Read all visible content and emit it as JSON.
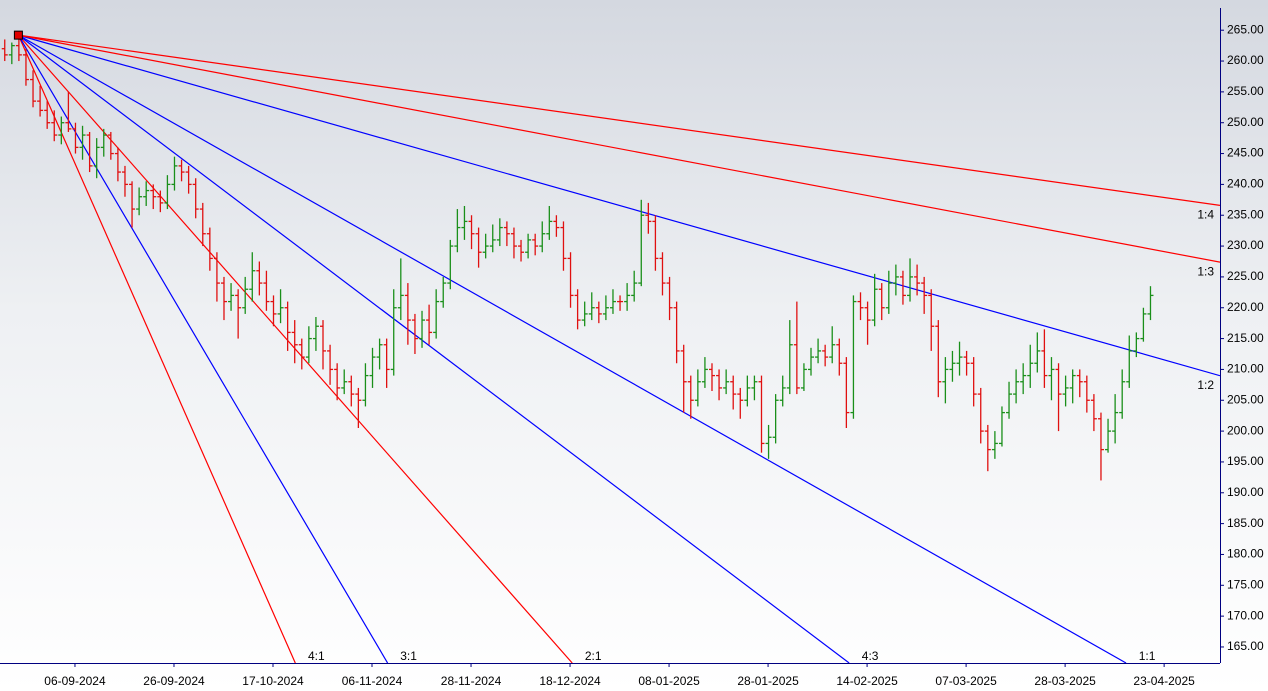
{
  "chart_data": {
    "type": "ohlc",
    "up_color": "#1a8f1a",
    "down_color": "#e01010",
    "xlim": [
      -0.6,
      171.9
    ],
    "ylim": [
      162.4,
      268.6
    ],
    "xticks": [
      {
        "value": 10,
        "label": "06-09-2024"
      },
      {
        "value": 24,
        "label": "26-09-2024"
      },
      {
        "value": 38,
        "label": "17-10-2024"
      },
      {
        "value": 52,
        "label": "06-11-2024"
      },
      {
        "value": 66,
        "label": "28-11-2024"
      },
      {
        "value": 80,
        "label": "18-12-2024"
      },
      {
        "value": 94,
        "label": "08-01-2025"
      },
      {
        "value": 108,
        "label": "28-01-2025"
      },
      {
        "value": 122,
        "label": "14-02-2025"
      },
      {
        "value": 136,
        "label": "07-03-2025"
      },
      {
        "value": 150,
        "label": "28-03-2025"
      },
      {
        "value": 164,
        "label": "23-04-2025"
      }
    ],
    "yticks": [
      {
        "value": 165,
        "label": "165.00"
      },
      {
        "value": 170,
        "label": "170.00"
      },
      {
        "value": 175,
        "label": "175.00"
      },
      {
        "value": 180,
        "label": "180.00"
      },
      {
        "value": 185,
        "label": "185.00"
      },
      {
        "value": 190,
        "label": "190.00"
      },
      {
        "value": 195,
        "label": "195.00"
      },
      {
        "value": 200,
        "label": "200.00"
      },
      {
        "value": 205,
        "label": "205.00"
      },
      {
        "value": 210,
        "label": "210.00"
      },
      {
        "value": 215,
        "label": "215.00"
      },
      {
        "value": 220,
        "label": "220.00"
      },
      {
        "value": 225,
        "label": "225.00"
      },
      {
        "value": 230,
        "label": "230.00"
      },
      {
        "value": 235,
        "label": "235.00"
      },
      {
        "value": 240,
        "label": "240.00"
      },
      {
        "value": 245,
        "label": "245.00"
      },
      {
        "value": 250,
        "label": "250.00"
      },
      {
        "value": 255,
        "label": "255.00"
      },
      {
        "value": 260,
        "label": "260.00"
      },
      {
        "value": 265,
        "label": "265.00"
      }
    ],
    "fan": {
      "origin_x": 2,
      "origin_y": 264.2,
      "unit": 0.65,
      "lines": [
        {
          "label": "4:1",
          "ratio": 4,
          "color": "#ff0000"
        },
        {
          "label": "3:1",
          "ratio": 3,
          "color": "#0000ff"
        },
        {
          "label": "2:1",
          "ratio": 2,
          "color": "#ff0000"
        },
        {
          "label": "4:3",
          "ratio": 1.3333,
          "color": "#0000ff"
        },
        {
          "label": "1:1",
          "ratio": 1,
          "color": "#0000ff"
        },
        {
          "label": "1:2",
          "ratio": 0.5,
          "color": "#0000ff"
        },
        {
          "label": "1:3",
          "ratio": 0.3333,
          "color": "#ff0000"
        },
        {
          "label": "1:4",
          "ratio": 0.25,
          "color": "#ff0000"
        }
      ]
    },
    "ohlc": [
      [
        262,
        263.5,
        260,
        261
      ],
      [
        261,
        263,
        259.5,
        262.5
      ],
      [
        262.5,
        264.5,
        260,
        261
      ],
      [
        261,
        262,
        256,
        257
      ],
      [
        257,
        258.5,
        252.5,
        253.5
      ],
      [
        253.5,
        256,
        251,
        252
      ],
      [
        252,
        253.5,
        249,
        250
      ],
      [
        250,
        252,
        247,
        248
      ],
      [
        248,
        251,
        246.5,
        250
      ],
      [
        250,
        255,
        248.5,
        249
      ],
      [
        249,
        250,
        245,
        246
      ],
      [
        246,
        249.5,
        244,
        248
      ],
      [
        248,
        248.5,
        242,
        243
      ],
      [
        243,
        247.5,
        241,
        246
      ],
      [
        246,
        249,
        244.5,
        248
      ],
      [
        248,
        248.5,
        244,
        245
      ],
      [
        245,
        246,
        240.5,
        242
      ],
      [
        242,
        243,
        238,
        240
      ],
      [
        240,
        240.5,
        233,
        236
      ],
      [
        236,
        239.5,
        235,
        238
      ],
      [
        238,
        240.5,
        236.5,
        239
      ],
      [
        239,
        240,
        236,
        238
      ],
      [
        238,
        239,
        235.5,
        237
      ],
      [
        237,
        241.5,
        236,
        240
      ],
      [
        240,
        244.5,
        239,
        243
      ],
      [
        243,
        244,
        240.5,
        242
      ],
      [
        242,
        243,
        238.5,
        240
      ],
      [
        240,
        241,
        234.5,
        236
      ],
      [
        236,
        237,
        230,
        232
      ],
      [
        232,
        233,
        226,
        228
      ],
      [
        228,
        229,
        221,
        224
      ],
      [
        224,
        225,
        218,
        221
      ],
      [
        221,
        224,
        219.5,
        222
      ],
      [
        222,
        223,
        215,
        220
      ],
      [
        220,
        225,
        219,
        223
      ],
      [
        223,
        229,
        221,
        226
      ],
      [
        226,
        227.5,
        222,
        224
      ],
      [
        224,
        226,
        219.5,
        221
      ],
      [
        221,
        222,
        217,
        219
      ],
      [
        219,
        223,
        217.5,
        220
      ],
      [
        220,
        221,
        213,
        216
      ],
      [
        216,
        218,
        211,
        214
      ],
      [
        214,
        215,
        210,
        212
      ],
      [
        212,
        217,
        211,
        215
      ],
      [
        215,
        218.5,
        213,
        217
      ],
      [
        217,
        218,
        210,
        213
      ],
      [
        213,
        214,
        207.5,
        210
      ],
      [
        210,
        211,
        205,
        207
      ],
      [
        207,
        210,
        206,
        208
      ],
      [
        208,
        209,
        204,
        206
      ],
      [
        206,
        207,
        200.5,
        205
      ],
      [
        205,
        211,
        204,
        209
      ],
      [
        209,
        213.5,
        207,
        212
      ],
      [
        212,
        215,
        210,
        214
      ],
      [
        214,
        215,
        207,
        210
      ],
      [
        210,
        223,
        209,
        220
      ],
      [
        220,
        228,
        218,
        222
      ],
      [
        222,
        224,
        214,
        218
      ],
      [
        218,
        219,
        212.5,
        215
      ],
      [
        215,
        219.5,
        213.5,
        218
      ],
      [
        218,
        220.5,
        214,
        216
      ],
      [
        216,
        223,
        215,
        221
      ],
      [
        221,
        225,
        220,
        224
      ],
      [
        224,
        231,
        223,
        230
      ],
      [
        230,
        236,
        229,
        233
      ],
      [
        233,
        236.5,
        231,
        234
      ],
      [
        234,
        235,
        229.5,
        232
      ],
      [
        232,
        233,
        226.5,
        229
      ],
      [
        229,
        232,
        228,
        230
      ],
      [
        230,
        233.5,
        229,
        231
      ],
      [
        231,
        234.5,
        230,
        233
      ],
      [
        233,
        234,
        230,
        232
      ],
      [
        232,
        233,
        228,
        230
      ],
      [
        230,
        231,
        227.5,
        229
      ],
      [
        229,
        232,
        228,
        231
      ],
      [
        231,
        232,
        228.5,
        230
      ],
      [
        230,
        234,
        229,
        232
      ],
      [
        232,
        236.5,
        231,
        234
      ],
      [
        234,
        235,
        231.5,
        233
      ],
      [
        233,
        234,
        226,
        228
      ],
      [
        228,
        229,
        220,
        222
      ],
      [
        222,
        223,
        216.5,
        218
      ],
      [
        218,
        221,
        217,
        219
      ],
      [
        219,
        222.5,
        218,
        220
      ],
      [
        220,
        221,
        217.5,
        219
      ],
      [
        219,
        222,
        218,
        220
      ],
      [
        220,
        223,
        219,
        221
      ],
      [
        221,
        222,
        219.5,
        221
      ],
      [
        221,
        224,
        219.5,
        222
      ],
      [
        222,
        226,
        221,
        224
      ],
      [
        224,
        237.5,
        223.5,
        235
      ],
      [
        235,
        237,
        232,
        234
      ],
      [
        234,
        235,
        226,
        228
      ],
      [
        228,
        229,
        222,
        224
      ],
      [
        224,
        225,
        218,
        220
      ],
      [
        220,
        221,
        211,
        213
      ],
      [
        213,
        214,
        203,
        208
      ],
      [
        208,
        209,
        202,
        205
      ],
      [
        205,
        210,
        204,
        208
      ],
      [
        208,
        212,
        207,
        210
      ],
      [
        210,
        211,
        206.5,
        209
      ],
      [
        209,
        210,
        205,
        207
      ],
      [
        207,
        210,
        206,
        208
      ],
      [
        208,
        209,
        203.5,
        206
      ],
      [
        206,
        207,
        202,
        205
      ],
      [
        205,
        209,
        204,
        207
      ],
      [
        207,
        209,
        205,
        208
      ],
      [
        208,
        209,
        196.5,
        198
      ],
      [
        198,
        201,
        195.5,
        199
      ],
      [
        199,
        206,
        198,
        205
      ],
      [
        205,
        209,
        204,
        207
      ],
      [
        207,
        218,
        206,
        214
      ],
      [
        214,
        221,
        206,
        207
      ],
      [
        207,
        211,
        206.5,
        210
      ],
      [
        210,
        213.5,
        209,
        212
      ],
      [
        212,
        215,
        211,
        213
      ],
      [
        213,
        214,
        210.5,
        212
      ],
      [
        212,
        217,
        211,
        214
      ],
      [
        214,
        215,
        209,
        211
      ],
      [
        211,
        212,
        200.5,
        203
      ],
      [
        203,
        222,
        202,
        221
      ],
      [
        221,
        222.5,
        218,
        220
      ],
      [
        220,
        221,
        214,
        218
      ],
      [
        218,
        225.5,
        217,
        223
      ],
      [
        223,
        224,
        218,
        220
      ],
      [
        220,
        226,
        219,
        224
      ],
      [
        224,
        227,
        222,
        225
      ],
      [
        225,
        226,
        220.5,
        222
      ],
      [
        222,
        228,
        221,
        225
      ],
      [
        225,
        227,
        222,
        224
      ],
      [
        224,
        225,
        219,
        222
      ],
      [
        222,
        223,
        213,
        217
      ],
      [
        217,
        218,
        205.5,
        208
      ],
      [
        208,
        212,
        204.5,
        210
      ],
      [
        210,
        213,
        208,
        211
      ],
      [
        211,
        214.5,
        209,
        212
      ],
      [
        212,
        213,
        209,
        211
      ],
      [
        211,
        212,
        204,
        206
      ],
      [
        206,
        207,
        198,
        200
      ],
      [
        200,
        201,
        193.5,
        197
      ],
      [
        197,
        200,
        195.5,
        198
      ],
      [
        198,
        204,
        197.5,
        203
      ],
      [
        203,
        208,
        202,
        206
      ],
      [
        206,
        210,
        204.5,
        208
      ],
      [
        208,
        211,
        206,
        209
      ],
      [
        209,
        214,
        207,
        211
      ],
      [
        211,
        216,
        209.5,
        213
      ],
      [
        213,
        216.5,
        207,
        209
      ],
      [
        209,
        212,
        205,
        210
      ],
      [
        210,
        211,
        200,
        206
      ],
      [
        206,
        209,
        204,
        207
      ],
      [
        207,
        210,
        204.5,
        209
      ],
      [
        209,
        210,
        205.5,
        208
      ],
      [
        208,
        209,
        203,
        205
      ],
      [
        205,
        206,
        200,
        202
      ],
      [
        202,
        203,
        192,
        197
      ],
      [
        197,
        202,
        196.5,
        200
      ],
      [
        200,
        206,
        198,
        203
      ],
      [
        203,
        210,
        202,
        208
      ],
      [
        208,
        215.5,
        207,
        213
      ],
      [
        213,
        216,
        212,
        215
      ],
      [
        215,
        220,
        214.5,
        219
      ],
      [
        219,
        223.5,
        218,
        222
      ]
    ]
  }
}
